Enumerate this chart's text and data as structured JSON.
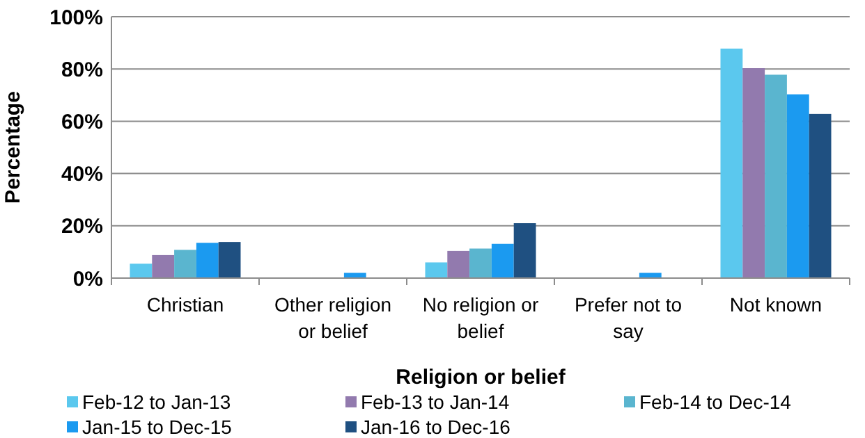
{
  "chart_data": {
    "type": "bar",
    "xlabel": "Religion or belief",
    "ylabel": "Percentage",
    "categories": [
      "Christian",
      "Other religion or belief",
      "No religion or belief",
      "Prefer not to say",
      "Not known"
    ],
    "series": [
      {
        "name": "Feb-12 to Jan-13",
        "color": "#5bc8ee",
        "values": [
          5.5,
          0,
          6,
          0,
          87.8
        ]
      },
      {
        "name": "Feb-13 to Jan-14",
        "color": "#927aae",
        "values": [
          8.8,
          0,
          10.4,
          0,
          80.3
        ]
      },
      {
        "name": "Feb-14 to Dec-14",
        "color": "#5ab5cf",
        "values": [
          10.8,
          0,
          11.3,
          0,
          77.8
        ]
      },
      {
        "name": "Jan-15 to Dec-15",
        "color": "#1b9af0",
        "values": [
          13.5,
          2,
          13.1,
          2,
          70.3
        ]
      },
      {
        "name": "Jan-16 to Dec-16",
        "color": "#1f5081",
        "values": [
          13.8,
          0,
          21,
          0,
          62.8
        ]
      }
    ],
    "ylim": [
      0,
      100
    ],
    "yticks": [
      {
        "value": 0,
        "label": "0%"
      },
      {
        "value": 20,
        "label": "20%"
      },
      {
        "value": 40,
        "label": "40%"
      },
      {
        "value": 60,
        "label": "60%"
      },
      {
        "value": 80,
        "label": "80%"
      },
      {
        "value": 100,
        "label": "100%"
      }
    ],
    "grid": "y",
    "legend": "bottom"
  }
}
